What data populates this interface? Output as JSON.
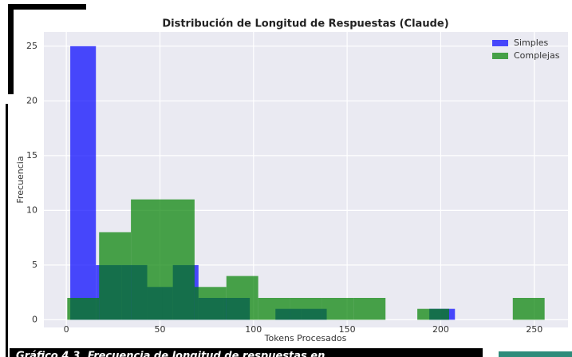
{
  "chart_data": {
    "type": "histogram",
    "title": "Distribución de Longitud de Respuestas (Claude)",
    "xlabel": "Tokens Procesados",
    "ylabel": "Frecuencia",
    "series": [
      {
        "name": "Simples",
        "color": "#0000ff",
        "bins": [
          2.1,
          15.8,
          29.5,
          43.2,
          56.9,
          70.6,
          84.3,
          98.0,
          111.7,
          125.4,
          139.1,
          152.8,
          166.5,
          180.2,
          193.9,
          207.6
        ],
        "values": [
          25,
          5,
          5,
          3,
          5,
          2,
          2,
          0,
          1,
          1,
          0,
          0,
          0,
          0,
          1
        ]
      },
      {
        "name": "Complejas",
        "color": "#008000",
        "bins": [
          0.5,
          17.5,
          34.5,
          51.5,
          68.5,
          85.5,
          102.5,
          119.5,
          136.5,
          153.5,
          170.5,
          187.5,
          204.5,
          221.5,
          238.5,
          255.5
        ],
        "values": [
          2,
          8,
          11,
          11,
          3,
          4,
          2,
          2,
          2,
          2,
          0,
          1,
          0,
          0,
          2
        ]
      }
    ],
    "xlim": [
      -12,
      268
    ],
    "xticks": [
      0,
      50,
      100,
      150,
      200,
      250
    ],
    "ylim": [
      -0.7,
      26.3
    ],
    "yticks": [
      0,
      5,
      10,
      15,
      20,
      25
    ],
    "grid": true,
    "legend": "upper right",
    "caption": "Gráfico 4.3. Frecuencia de longitud de respuestas en"
  }
}
